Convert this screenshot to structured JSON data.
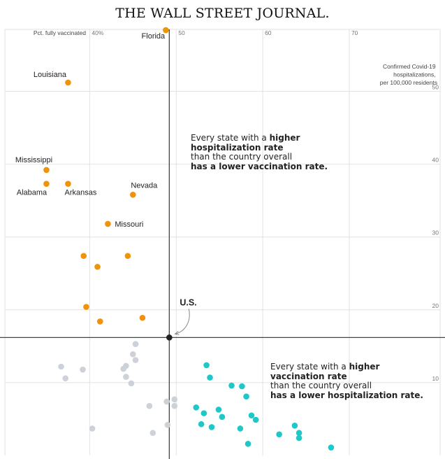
{
  "masthead": "THE WALL STREET JOURNAL.",
  "annotation_top": {
    "line1_plain": "Every state with a ",
    "line1_bold": "higher",
    "line2_bold": "hospitalization rate",
    "line3_plain": "than the country overall",
    "line4_bold": "has a lower vaccination rate."
  },
  "annotation_bottom": {
    "line1_plain": "Every state with a ",
    "line1_bold": "higher",
    "line2_bold": "vaccination rate",
    "line3_plain": "than the country overall",
    "line4_bold": "has a lower hospitalization rate."
  },
  "colors": {
    "high_hosp_low_vax": "#f0920a",
    "high_vax_low_hosp": "#1ec8c8",
    "other": "#cdd1d8",
    "us": "#222222",
    "axis": "#444444",
    "grid": "#e2e2e2"
  },
  "chart_data": {
    "type": "scatter",
    "xlabel": "Pct. fully vaccinated",
    "ylabel_lines": [
      "Confirmed Covid-19",
      "hospitalizations,",
      "per 100,000 residents"
    ],
    "x_ticks": [
      {
        "value": 40,
        "label": "40%"
      },
      {
        "value": 50,
        "label": "50"
      },
      {
        "value": 60,
        "label": "60"
      },
      {
        "value": 70,
        "label": "70"
      }
    ],
    "y_ticks": [
      {
        "value": 10,
        "label": "10"
      },
      {
        "value": 20,
        "label": "20"
      },
      {
        "value": 30,
        "label": "30"
      },
      {
        "value": 40,
        "label": "40"
      },
      {
        "value": 50,
        "label": "50"
      }
    ],
    "xlim": [
      30.2,
      80.5
    ],
    "ylim": [
      0,
      58.5
    ],
    "reference": {
      "label": "U.S.",
      "x": 49.2,
      "y": 16.2
    },
    "series": [
      {
        "category": "high_hosp_low_vax",
        "points": [
          {
            "x": 48.8,
            "y": 58.4,
            "label": "Florida"
          },
          {
            "x": 37.5,
            "y": 51.2,
            "label": "Louisiana"
          },
          {
            "x": 35.0,
            "y": 39.2,
            "label": "Mississippi"
          },
          {
            "x": 35.0,
            "y": 37.3,
            "label": "Alabama"
          },
          {
            "x": 37.5,
            "y": 37.3,
            "label": "Arkansas"
          },
          {
            "x": 45.0,
            "y": 35.8,
            "label": "Nevada"
          },
          {
            "x": 42.1,
            "y": 31.8,
            "label": "Missouri"
          },
          {
            "x": 39.3,
            "y": 27.4
          },
          {
            "x": 40.9,
            "y": 25.9
          },
          {
            "x": 44.4,
            "y": 27.4
          },
          {
            "x": 39.6,
            "y": 20.4
          },
          {
            "x": 41.2,
            "y": 18.4
          },
          {
            "x": 46.1,
            "y": 18.9
          }
        ]
      },
      {
        "category": "high_vax_low_hosp",
        "points": [
          {
            "x": 53.5,
            "y": 12.4
          },
          {
            "x": 53.9,
            "y": 10.7
          },
          {
            "x": 56.4,
            "y": 9.6
          },
          {
            "x": 57.6,
            "y": 9.5
          },
          {
            "x": 58.1,
            "y": 8.1
          },
          {
            "x": 52.3,
            "y": 6.6
          },
          {
            "x": 53.2,
            "y": 5.8
          },
          {
            "x": 54.9,
            "y": 6.3
          },
          {
            "x": 55.3,
            "y": 5.3
          },
          {
            "x": 52.9,
            "y": 4.3
          },
          {
            "x": 54.1,
            "y": 3.9
          },
          {
            "x": 57.4,
            "y": 3.7
          },
          {
            "x": 58.7,
            "y": 5.5
          },
          {
            "x": 59.2,
            "y": 4.9
          },
          {
            "x": 58.3,
            "y": 1.6
          },
          {
            "x": 61.9,
            "y": 2.9
          },
          {
            "x": 63.7,
            "y": 4.1
          },
          {
            "x": 64.2,
            "y": 3.1
          },
          {
            "x": 64.2,
            "y": 2.4
          },
          {
            "x": 67.9,
            "y": 1.1
          }
        ]
      },
      {
        "category": "other",
        "points": [
          {
            "x": 45.3,
            "y": 15.3
          },
          {
            "x": 45.0,
            "y": 13.9
          },
          {
            "x": 45.3,
            "y": 13.1
          },
          {
            "x": 44.2,
            "y": 12.3
          },
          {
            "x": 43.9,
            "y": 11.9
          },
          {
            "x": 44.2,
            "y": 10.8
          },
          {
            "x": 44.8,
            "y": 9.9
          },
          {
            "x": 36.7,
            "y": 12.2
          },
          {
            "x": 37.2,
            "y": 10.6
          },
          {
            "x": 39.2,
            "y": 11.8
          },
          {
            "x": 46.9,
            "y": 6.8
          },
          {
            "x": 48.9,
            "y": 7.4
          },
          {
            "x": 49.8,
            "y": 7.7
          },
          {
            "x": 49.8,
            "y": 6.8
          },
          {
            "x": 49.0,
            "y": 4.2
          },
          {
            "x": 47.3,
            "y": 3.1
          },
          {
            "x": 40.3,
            "y": 3.7
          }
        ]
      }
    ]
  }
}
